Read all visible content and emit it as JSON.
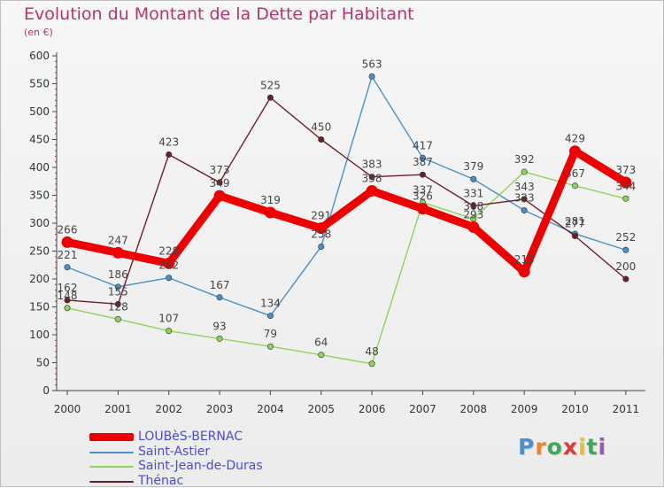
{
  "title": "Evolution du Montant de la Dette par Habitant",
  "unit_label": "(en €)",
  "logo_text": "Proxiti",
  "logo_colors": [
    "#4a8fd1",
    "#e6892b",
    "#3ea85a",
    "#d93a3a",
    "#e6c12b",
    "#3ea85a",
    "#9b59b6"
  ],
  "chart_data": {
    "type": "line",
    "x": [
      "2000",
      "2001",
      "2002",
      "2003",
      "2004",
      "2005",
      "2006",
      "2007",
      "2008",
      "2009",
      "2010",
      "2011"
    ],
    "ylim": [
      0,
      600
    ],
    "yticks": [
      0,
      50,
      100,
      150,
      200,
      250,
      300,
      350,
      400,
      450,
      500,
      550,
      600
    ],
    "grid": false,
    "legend_position": "bottom-left",
    "series": [
      {
        "name": "LOUBèS-BERNAC",
        "color": "#ee0000",
        "values": [
          266,
          247,
          228,
          349,
          319,
          291,
          358,
          326,
          293,
          213,
          429,
          373
        ]
      },
      {
        "name": "Saint-Astier",
        "color": "#4a90c9",
        "values": [
          221,
          186,
          202,
          167,
          134,
          258,
          563,
          417,
          379,
          323,
          281,
          252
        ]
      },
      {
        "name": "Saint-Jean-de-Duras",
        "color": "#8ed35a",
        "values": [
          148,
          128,
          107,
          93,
          79,
          64,
          48,
          337,
          308,
          392,
          367,
          344
        ]
      },
      {
        "name": "Thénac",
        "color": "#6e1e28",
        "values": [
          162,
          155,
          423,
          373,
          525,
          450,
          383,
          387,
          331,
          343,
          277,
          200
        ]
      }
    ]
  }
}
